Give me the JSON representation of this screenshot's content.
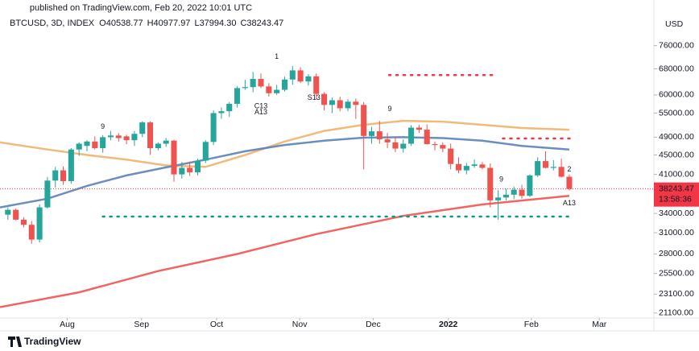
{
  "header": {
    "published": "published on TradingView.com, Feb 20, 2022 10:01 UTC",
    "symbol": "BTCUSD, 3D, INDEX",
    "ohlc": [
      {
        "label": "O",
        "value": "40538.77"
      },
      {
        "label": "H",
        "value": "40977.97"
      },
      {
        "label": "L",
        "value": "37994.30"
      },
      {
        "label": "C",
        "value": "38243.47"
      }
    ],
    "currency": "USD"
  },
  "footer": {
    "brand": "TradingView"
  },
  "chart_data": {
    "type": "candlestick",
    "scale": "log",
    "grid": false,
    "up_color": "#26a69a",
    "down_color": "#ef5350",
    "xlim": [
      -1,
      81.7
    ],
    "ylim": [
      20600,
      91000
    ],
    "xticks": [
      {
        "value": 7.5,
        "label": "Aug"
      },
      {
        "value": 16.9,
        "label": "Sep"
      },
      {
        "value": 26.4,
        "label": "Oct"
      },
      {
        "value": 36.9,
        "label": "Nov"
      },
      {
        "value": 46.2,
        "label": "Dec"
      },
      {
        "value": 55.7,
        "label": "2022"
      },
      {
        "value": 66.2,
        "label": "Feb"
      },
      {
        "value": 74.8,
        "label": "Mar"
      }
    ],
    "yticks": [
      {
        "value": 76000,
        "label": "76000.00"
      },
      {
        "value": 68000,
        "label": "68000.00"
      },
      {
        "value": 60000,
        "label": "60000.00"
      },
      {
        "value": 55000,
        "label": "55000.00"
      },
      {
        "value": 49000,
        "label": "49000.00"
      },
      {
        "value": 45000,
        "label": "45000.00"
      },
      {
        "value": 41000,
        "label": "41000.00"
      },
      {
        "value": 34000,
        "label": "34000.00"
      },
      {
        "value": 31000,
        "label": "31000.00"
      },
      {
        "value": 28000,
        "label": "28000.00"
      },
      {
        "value": 25500,
        "label": "25500.00"
      },
      {
        "value": 23100,
        "label": "23100.00"
      },
      {
        "value": 21100,
        "label": "21100.00"
      }
    ],
    "series": [
      {
        "open": [
          33800,
          34600,
          33000,
          32200,
          30000,
          35000,
          39800,
          41800,
          39700,
          46200,
          47000,
          48000,
          46500,
          49000,
          49400,
          49200,
          48300,
          49800,
          52600,
          46500,
          47500,
          48200,
          41000,
          42300,
          41400,
          43800,
          47900,
          55000,
          55500,
          57500,
          62000,
          62300,
          64800,
          62500,
          60500,
          61500,
          64600,
          67500,
          64000,
          65600,
          60300,
          57200,
          58500,
          56300,
          58100,
          57200,
          49300,
          50400,
          48500,
          47800,
          46400,
          47500,
          51300,
          50800,
          47400,
          47200,
          46400,
          43100,
          41800,
          42700,
          43000,
          42300,
          36200,
          36700,
          37200,
          38100,
          37000,
          40800,
          43700,
          42300,
          42500,
          40538.77
        ],
        "high": [
          35000,
          34800,
          33400,
          32800,
          35500,
          40500,
          42500,
          42600,
          46500,
          47800,
          48300,
          49200,
          49500,
          50500,
          50000,
          49600,
          50500,
          52900,
          52900,
          47800,
          48800,
          48400,
          43500,
          43600,
          44200,
          48300,
          55700,
          56500,
          58000,
          62500,
          64500,
          67000,
          66500,
          63500,
          63000,
          65500,
          68900,
          68500,
          66300,
          66500,
          60800,
          59300,
          59500,
          58800,
          59000,
          58000,
          51500,
          53000,
          50000,
          49000,
          48500,
          51900,
          52000,
          52100,
          48000,
          47800,
          47500,
          44500,
          43300,
          44000,
          43500,
          43200,
          38000,
          38300,
          38700,
          39000,
          41000,
          44500,
          45800,
          43900,
          44200,
          40977.97
        ],
        "low": [
          33000,
          32900,
          31800,
          29400,
          29600,
          34800,
          38500,
          39000,
          39200,
          44800,
          45800,
          46200,
          45500,
          48300,
          48000,
          47400,
          47000,
          49000,
          45000,
          46000,
          46800,
          39600,
          40200,
          40700,
          40800,
          43300,
          47200,
          53500,
          54000,
          56500,
          61500,
          60800,
          62000,
          59500,
          60000,
          61000,
          63000,
          63500,
          62800,
          58800,
          55700,
          55000,
          55500,
          55500,
          53500,
          42000,
          47500,
          47500,
          46500,
          45600,
          45500,
          47000,
          50000,
          47300,
          46000,
          45600,
          42000,
          41200,
          41000,
          42300,
          42000,
          35000,
          33000,
          36200,
          36400,
          36500,
          36800,
          40500,
          42200,
          41800,
          40400,
          37994.3
        ],
        "close": [
          34600,
          33000,
          32200,
          30000,
          35000,
          39800,
          41800,
          39700,
          46200,
          47500,
          48000,
          46500,
          49000,
          49400,
          48800,
          48300,
          49800,
          52600,
          46500,
          47500,
          48200,
          41000,
          42300,
          41400,
          43800,
          47900,
          55000,
          55500,
          57500,
          62000,
          62300,
          64800,
          62500,
          60500,
          61500,
          64600,
          67500,
          64000,
          65600,
          60300,
          57200,
          58500,
          56300,
          58100,
          57200,
          49300,
          50400,
          48500,
          47800,
          46400,
          47500,
          51300,
          50800,
          47400,
          47200,
          46400,
          43100,
          41800,
          42700,
          43000,
          42300,
          36200,
          36700,
          37200,
          38100,
          37000,
          40800,
          43700,
          42300,
          42500,
          40538.77,
          38243.47
        ]
      }
    ],
    "lines": [
      {
        "color": "#f0b26b",
        "x": [
          -1,
          5,
          10,
          15,
          20,
          25,
          30,
          35,
          40,
          45,
          50,
          55,
          60,
          65,
          71
        ],
        "values": [
          47800,
          46200,
          45000,
          44000,
          42800,
          42500,
          45000,
          48000,
          50500,
          52000,
          53000,
          52800,
          52000,
          51200,
          50800
        ]
      },
      {
        "color": "#5b82b8",
        "x": [
          -1,
          5,
          10,
          15,
          20,
          25,
          30,
          35,
          40,
          45,
          50,
          55,
          60,
          65,
          71
        ],
        "values": [
          35000,
          36500,
          38800,
          40800,
          42400,
          44000,
          45800,
          47200,
          48200,
          48900,
          49000,
          48800,
          48200,
          47000,
          46200
        ]
      },
      {
        "color": "#ef5350",
        "x": [
          -1,
          9,
          19,
          29,
          39,
          50,
          60,
          71
        ],
        "values": [
          21700,
          23300,
          25800,
          28000,
          30800,
          33600,
          35500,
          37000
        ]
      }
    ],
    "levels": [
      {
        "color": "#f23645",
        "value": 66000,
        "x": [
          48.2,
          61.6
        ]
      },
      {
        "color": "#f23645",
        "value": 48700,
        "x": [
          62.6,
          71.5
        ]
      },
      {
        "color": "#089981",
        "value": 33500,
        "x": [
          12,
          71.5
        ]
      }
    ],
    "annotations": [
      {
        "text": "9",
        "color": "#9aa832",
        "x": 12,
        "y": 51500
      },
      {
        "text": "1",
        "color": "#f23645",
        "x": 34,
        "y": 72000
      },
      {
        "text": "C13",
        "color": "#d940c0",
        "x": 32,
        "y": 56800
      },
      {
        "text": "A13",
        "color": "#2962ff",
        "x": 32,
        "y": 55200
      },
      {
        "text": "S13",
        "color": "#f57c00",
        "x": 38.7,
        "y": 59200
      },
      {
        "text": "9",
        "color": "#f23645",
        "x": 48.3,
        "y": 56000
      },
      {
        "text": "9",
        "color": "#f23645",
        "x": 62.4,
        "y": 40000
      },
      {
        "text": "2",
        "color": "#f23645",
        "x": 71,
        "y": 42000
      },
      {
        "text": "A13",
        "color": "#2962ff",
        "x": 71,
        "y": 35700
      }
    ],
    "last_price": 38243.47,
    "last_price_color": "#f23645",
    "countdown": "13:58:36"
  }
}
